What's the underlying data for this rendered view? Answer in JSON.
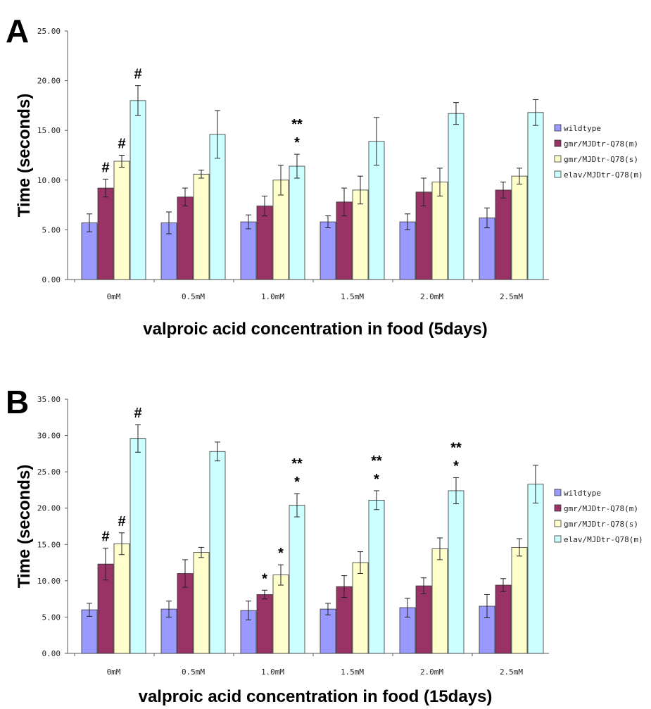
{
  "colors": {
    "wildtype": "#9999ff",
    "gmr_m": "#993366",
    "gmr_s": "#ffffcc",
    "elav_m": "#ccffff"
  },
  "chart_data": [
    {
      "panel": "A",
      "type": "bar",
      "xlabel": "valproic acid concentration in food (5days)",
      "ylabel": "Time  (seconds)",
      "ylim": [
        0,
        25
      ],
      "yticks": [
        "0.00",
        "5.00",
        "10.00",
        "15.00",
        "20.00",
        "25.00"
      ],
      "categories": [
        "0mM",
        "0.5mM",
        "1.0mM",
        "1.5mM",
        "2.0mM",
        "2.5mM"
      ],
      "grid": false,
      "legend_position": "right",
      "series": [
        {
          "name": "wildtype",
          "values": [
            5.7,
            5.7,
            5.8,
            5.8,
            5.8,
            6.2
          ],
          "errors": [
            0.9,
            1.1,
            0.7,
            0.6,
            0.8,
            1.0
          ]
        },
        {
          "name": "gmr/MJDtr-Q78(m)",
          "values": [
            9.2,
            8.3,
            7.4,
            7.8,
            8.8,
            9.0
          ],
          "errors": [
            0.9,
            0.9,
            1.0,
            1.4,
            1.4,
            0.8
          ]
        },
        {
          "name": "gmr/MJDtr-Q78(s)",
          "values": [
            11.9,
            10.6,
            10.0,
            9.0,
            9.8,
            10.4
          ],
          "errors": [
            0.6,
            0.4,
            1.5,
            1.4,
            1.4,
            0.8
          ]
        },
        {
          "name": "elav/MJDtr-Q78(m)",
          "values": [
            18.0,
            14.6,
            11.4,
            13.9,
            16.7,
            16.8
          ],
          "errors": [
            1.5,
            2.4,
            1.2,
            2.4,
            1.1,
            1.3
          ]
        }
      ],
      "annotations": [
        {
          "category": 0,
          "series": 1,
          "text": "#"
        },
        {
          "category": 0,
          "series": 2,
          "text": "#"
        },
        {
          "category": 0,
          "series": 3,
          "text": "#"
        },
        {
          "category": 2,
          "series": 3,
          "text": "*"
        },
        {
          "category": 2,
          "series": 3,
          "text": "**"
        }
      ]
    },
    {
      "panel": "B",
      "type": "bar",
      "xlabel": "valproic acid concentration in food (15days)",
      "ylabel": "Time  (seconds)",
      "ylim": [
        0,
        35
      ],
      "yticks": [
        "0.00",
        "5.00",
        "10.00",
        "15.00",
        "20.00",
        "25.00",
        "30.00",
        "35.00"
      ],
      "categories": [
        "0mM",
        "0.5mM",
        "1.0mM",
        "1.5mM",
        "2.0mM",
        "2.5mM"
      ],
      "grid": false,
      "legend_position": "right",
      "series": [
        {
          "name": "wildtype",
          "values": [
            6.0,
            6.1,
            5.9,
            6.1,
            6.3,
            6.5
          ],
          "errors": [
            0.9,
            1.1,
            1.3,
            0.8,
            1.3,
            1.6
          ]
        },
        {
          "name": "gmr/MJDtr-Q78(m)",
          "values": [
            12.3,
            11.0,
            8.1,
            9.2,
            9.3,
            9.4
          ],
          "errors": [
            2.2,
            1.9,
            0.6,
            1.5,
            1.1,
            0.9
          ]
        },
        {
          "name": "gmr/MJDtr-Q78(s)",
          "values": [
            15.1,
            13.9,
            10.8,
            12.5,
            14.4,
            14.6
          ],
          "errors": [
            1.5,
            0.7,
            1.4,
            1.5,
            1.5,
            1.2
          ]
        },
        {
          "name": "elav/MJDtr-Q78(m)",
          "values": [
            29.6,
            27.8,
            20.4,
            21.1,
            22.4,
            23.3
          ],
          "errors": [
            1.9,
            1.3,
            1.6,
            1.3,
            1.8,
            2.6
          ]
        }
      ],
      "annotations": [
        {
          "category": 0,
          "series": 1,
          "text": "#"
        },
        {
          "category": 0,
          "series": 2,
          "text": "#"
        },
        {
          "category": 0,
          "series": 3,
          "text": "#"
        },
        {
          "category": 2,
          "series": 1,
          "text": "*"
        },
        {
          "category": 2,
          "series": 2,
          "text": "*"
        },
        {
          "category": 2,
          "series": 3,
          "text": "*"
        },
        {
          "category": 2,
          "series": 3,
          "text": "**"
        },
        {
          "category": 3,
          "series": 3,
          "text": "*"
        },
        {
          "category": 3,
          "series": 3,
          "text": "**"
        },
        {
          "category": 4,
          "series": 3,
          "text": "*"
        },
        {
          "category": 4,
          "series": 3,
          "text": "**"
        }
      ]
    }
  ]
}
